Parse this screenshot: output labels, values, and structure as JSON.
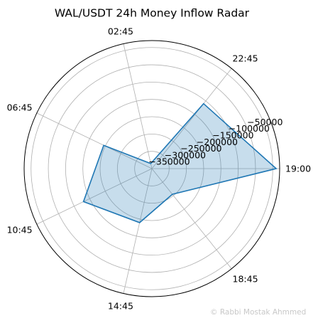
{
  "chart_data": {
    "type": "radar",
    "title": "WAL/USDT 24h Money Inflow Radar",
    "theta_labels": [
      "19:00",
      "22:45",
      "02:45",
      "06:45",
      "10:45",
      "14:45",
      "18:45"
    ],
    "radial_tick_labels": [
      "−350000",
      "−300000",
      "−250000",
      "−200000",
      "−150000",
      "−100000",
      "−50000"
    ],
    "radial_ticks": [
      -350000,
      -300000,
      -250000,
      -200000,
      -150000,
      -100000,
      -50000
    ],
    "rlim": [
      -400000,
      -30000
    ],
    "values": [
      -40000,
      -160000,
      -385000,
      -245000,
      -180000,
      -240000,
      -305000
    ],
    "grid": true,
    "colors": {
      "line": "#1f77b4",
      "fill": "#1f77b4",
      "grid": "#b0b0b0"
    }
  },
  "watermark": "© Rabbi Mostak Ahmmed"
}
